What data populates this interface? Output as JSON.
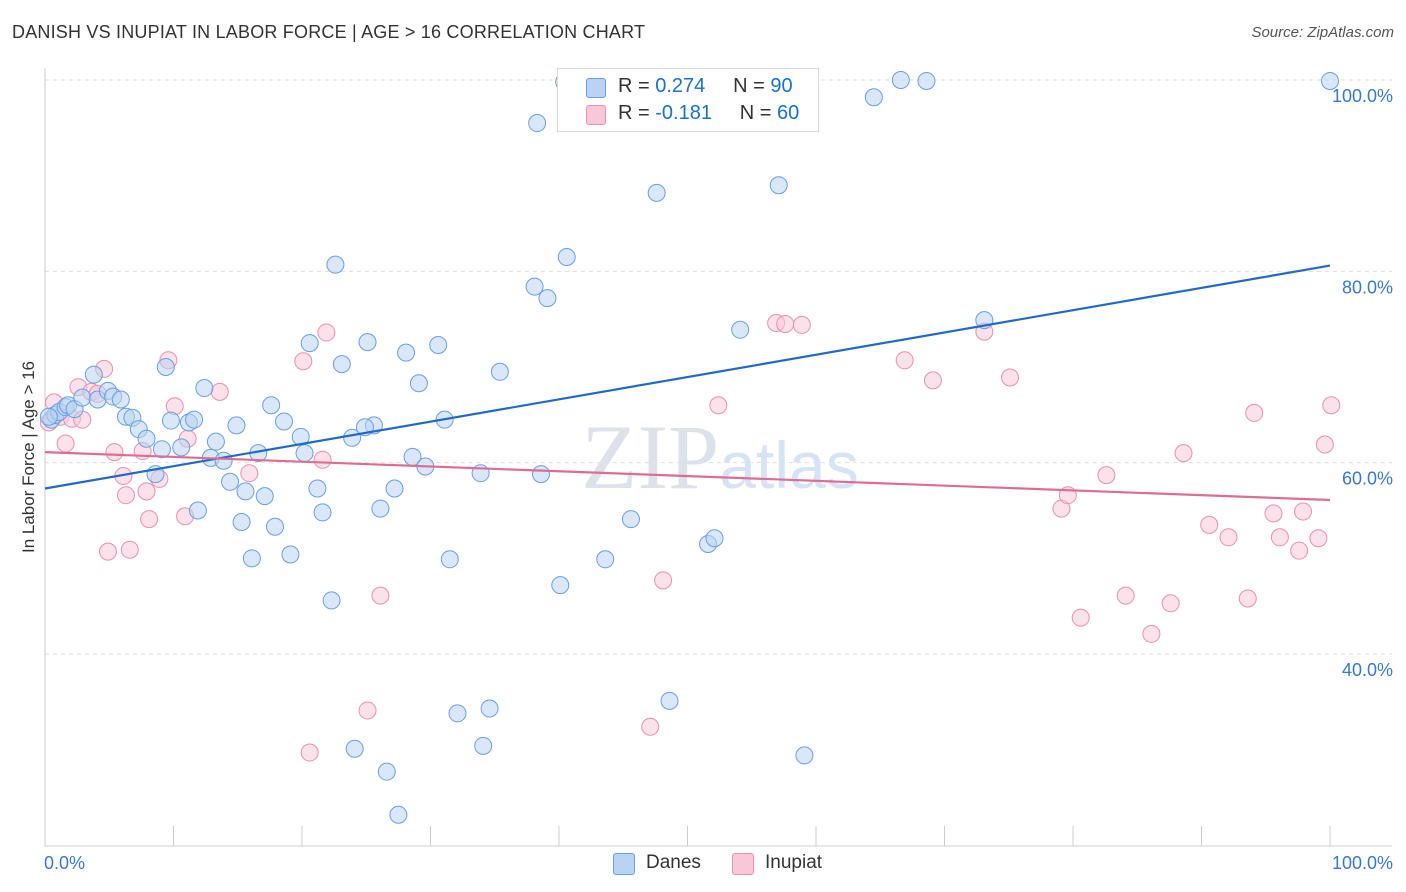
{
  "title": "DANISH VS INUPIAT IN LABOR FORCE | AGE > 16 CORRELATION CHART",
  "source": "Source: ZipAtlas.com",
  "legend": {
    "danes": {
      "r_label": "R =",
      "r_value": "0.274",
      "n_label": "N =",
      "n_value": "90"
    },
    "inupiat": {
      "r_label": "R =",
      "r_value": "-0.181",
      "n_label": "N =",
      "n_value": "60"
    }
  },
  "bottom_legend": [
    "Danes",
    "Inupiat"
  ],
  "colors": {
    "danes_fill": "#b9d3f3",
    "danes_stroke": "#6a9fe0",
    "danes_line": "#2369cc",
    "inupiat_fill": "#f8c8d8",
    "inupiat_stroke": "#e891ae",
    "inupiat_line": "#e06c96",
    "tick_text": "#3a78cc",
    "grid": "#dddddd"
  },
  "chart_data": {
    "type": "scatter",
    "xlabel": "",
    "ylabel": "In Labor Force | Age > 16",
    "xlim": [
      0,
      100
    ],
    "ylim": [
      20,
      102
    ],
    "x_tick_labels": [
      {
        "v": 0,
        "t": "0.0%"
      },
      {
        "v": 100,
        "t": "100.0%"
      }
    ],
    "y_tick_labels": [
      {
        "v": 100,
        "t": "100.0%"
      },
      {
        "v": 80,
        "t": "80.0%"
      },
      {
        "v": 60,
        "t": "60.0%"
      },
      {
        "v": 40,
        "t": "40.0%"
      }
    ],
    "watermark": "ZIPatlas",
    "grid": true,
    "series": [
      {
        "name": "Danes",
        "trend": [
          [
            0,
            57.3
          ],
          [
            100,
            80.6
          ]
        ],
        "points": [
          [
            0.5,
            64.5
          ],
          [
            0.8,
            65
          ],
          [
            1.1,
            65.3
          ],
          [
            1.6,
            65.8
          ],
          [
            1.8,
            66
          ],
          [
            2.3,
            65.6
          ],
          [
            2.9,
            66.8
          ],
          [
            3.8,
            69.2
          ],
          [
            4.1,
            66.6
          ],
          [
            4.9,
            67.5
          ],
          [
            5.3,
            66.9
          ],
          [
            5.9,
            66.6
          ],
          [
            6.3,
            64.8
          ],
          [
            6.8,
            64.7
          ],
          [
            7.3,
            63.5
          ],
          [
            7.9,
            62.5
          ],
          [
            8.6,
            58.8
          ],
          [
            9.1,
            61.4
          ],
          [
            9.4,
            70
          ],
          [
            9.8,
            64.4
          ],
          [
            10.6,
            61.6
          ],
          [
            11.2,
            64.2
          ],
          [
            11.6,
            64.5
          ],
          [
            11.9,
            55
          ],
          [
            12.4,
            67.8
          ],
          [
            12.9,
            60.5
          ],
          [
            13.3,
            62.2
          ],
          [
            13.9,
            60.2
          ],
          [
            14.4,
            58
          ],
          [
            14.9,
            63.9
          ],
          [
            15.3,
            53.8
          ],
          [
            15.6,
            57
          ],
          [
            16.1,
            50
          ],
          [
            16.6,
            61
          ],
          [
            17.1,
            56.5
          ],
          [
            17.6,
            66
          ],
          [
            17.9,
            53.3
          ],
          [
            18.6,
            64.3
          ],
          [
            19.1,
            50.4
          ],
          [
            19.9,
            62.7
          ],
          [
            20.2,
            61
          ],
          [
            20.6,
            72.5
          ],
          [
            21.2,
            57.3
          ],
          [
            21.6,
            54.8
          ],
          [
            22.3,
            45.6
          ],
          [
            22.6,
            80.7
          ],
          [
            23.1,
            70.3
          ],
          [
            23.9,
            62.6
          ],
          [
            24.1,
            30.1
          ],
          [
            25.1,
            72.6
          ],
          [
            25.6,
            63.9
          ],
          [
            26.1,
            55.2
          ],
          [
            26.6,
            27.7
          ],
          [
            27.2,
            57.3
          ],
          [
            27.5,
            23.2
          ],
          [
            28.1,
            71.5
          ],
          [
            28.6,
            60.6
          ],
          [
            29.1,
            68.3
          ],
          [
            29.6,
            59.6
          ],
          [
            30.6,
            72.3
          ],
          [
            31.1,
            64.5
          ],
          [
            31.5,
            49.9
          ],
          [
            32.1,
            33.8
          ],
          [
            33.9,
            58.9
          ],
          [
            34.1,
            30.4
          ],
          [
            34.6,
            34.3
          ],
          [
            35.4,
            69.5
          ],
          [
            38.1,
            78.4
          ],
          [
            38.3,
            95.5
          ],
          [
            38.6,
            58.8
          ],
          [
            39.1,
            77.2
          ],
          [
            40.1,
            47.2
          ],
          [
            40.6,
            81.5
          ],
          [
            43.6,
            49.9
          ],
          [
            45.6,
            54.1
          ],
          [
            47.6,
            88.2
          ],
          [
            48.6,
            35.1
          ],
          [
            51.6,
            51.5
          ],
          [
            52.1,
            52.1
          ],
          [
            54.1,
            73.9
          ],
          [
            57.1,
            89
          ],
          [
            59.1,
            29.4
          ],
          [
            64.5,
            98.2
          ],
          [
            66.6,
            100
          ],
          [
            68.6,
            99.9
          ],
          [
            73.1,
            74.9
          ],
          [
            100,
            99.9
          ],
          [
            40.4,
            99.8
          ],
          [
            0.3,
            64.8
          ],
          [
            24.9,
            63.7
          ]
        ]
      },
      {
        "name": "Inupiat",
        "trend": [
          [
            0,
            61.1
          ],
          [
            100,
            56.1
          ]
        ],
        "points": [
          [
            0.3,
            64.2
          ],
          [
            0.7,
            66.3
          ],
          [
            1.2,
            64.8
          ],
          [
            1.6,
            62
          ],
          [
            2.1,
            64.6
          ],
          [
            2.6,
            67.9
          ],
          [
            2.9,
            64.5
          ],
          [
            3.6,
            67.4
          ],
          [
            4.1,
            67.2
          ],
          [
            4.6,
            69.8
          ],
          [
            4.9,
            50.7
          ],
          [
            5.4,
            61.1
          ],
          [
            6.1,
            58.6
          ],
          [
            6.3,
            56.6
          ],
          [
            6.6,
            50.9
          ],
          [
            7.6,
            61.2
          ],
          [
            7.9,
            57
          ],
          [
            8.1,
            54.1
          ],
          [
            8.9,
            58.3
          ],
          [
            9.6,
            70.7
          ],
          [
            10.1,
            65.9
          ],
          [
            10.9,
            54.4
          ],
          [
            11.1,
            62.5
          ],
          [
            13.6,
            67.4
          ],
          [
            15.9,
            58.9
          ],
          [
            20.1,
            70.6
          ],
          [
            20.6,
            29.7
          ],
          [
            21.6,
            60.3
          ],
          [
            21.9,
            73.6
          ],
          [
            25.1,
            34.1
          ],
          [
            26.1,
            46.1
          ],
          [
            47.1,
            32.4
          ],
          [
            48.1,
            47.7
          ],
          [
            52.4,
            66
          ],
          [
            56.9,
            74.6
          ],
          [
            57.6,
            74.5
          ],
          [
            58.9,
            74.4
          ],
          [
            66.9,
            70.7
          ],
          [
            69.1,
            68.6
          ],
          [
            73.1,
            73.7
          ],
          [
            75.1,
            68.9
          ],
          [
            79.1,
            55.2
          ],
          [
            79.6,
            56.6
          ],
          [
            80.6,
            43.8
          ],
          [
            82.6,
            58.7
          ],
          [
            84.1,
            46.1
          ],
          [
            86.1,
            42.1
          ],
          [
            87.6,
            45.3
          ],
          [
            88.6,
            61
          ],
          [
            90.6,
            53.5
          ],
          [
            92.1,
            52.2
          ],
          [
            93.6,
            45.8
          ],
          [
            94.1,
            65.2
          ],
          [
            95.6,
            54.7
          ],
          [
            96.1,
            52.2
          ],
          [
            97.6,
            50.8
          ],
          [
            97.9,
            54.9
          ],
          [
            99.1,
            52.1
          ],
          [
            100.1,
            66
          ],
          [
            99.6,
            61.9
          ]
        ]
      }
    ]
  }
}
